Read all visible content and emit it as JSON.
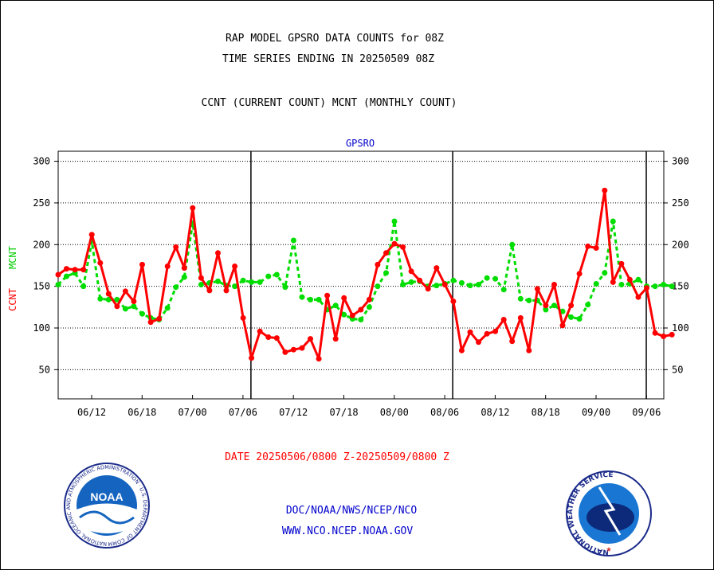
{
  "chart_data": {
    "type": "line",
    "title_lines": [
      "RAP MODEL GPSRO DATA COUNTS for 08Z",
      "TIME SERIES ENDING IN 20250509 08Z"
    ],
    "subtitle": "CCNT (CURRENT COUNT) MCNT (MONTHLY COUNT)",
    "panel_label": "GPSRO",
    "ylabel_ccnt": "CCNT",
    "ylabel_mcnt": "MCNT",
    "xlabel": "DATE 20250506/0800 Z-20250509/0800 Z",
    "ylim": [
      15,
      312
    ],
    "y_ticks": [
      50,
      100,
      150,
      200,
      250,
      300
    ],
    "x_ticks": [
      "06/12",
      "06/18",
      "07/00",
      "07/06",
      "07/12",
      "07/18",
      "08/00",
      "08/06",
      "08/12",
      "08/18",
      "09/00",
      "09/06"
    ],
    "day_boundaries": [
      "07/06",
      "08/06",
      "09/06"
    ],
    "grid": "horizontal-dotted",
    "colors": {
      "ccnt": "#ff0000",
      "mcnt": "#00dd00",
      "axis": "#000000",
      "label": "#0000cc"
    },
    "series": [
      {
        "name": "CCNT",
        "values": [
          164,
          171,
          170,
          170,
          212,
          178,
          141,
          126,
          144,
          132,
          176,
          107,
          111,
          174,
          197,
          172,
          244,
          160,
          145,
          190,
          145,
          174,
          112,
          64,
          96,
          89,
          88,
          71,
          74,
          76,
          87,
          63,
          139,
          87,
          136,
          115,
          122,
          134,
          176,
          190,
          201,
          197,
          168,
          157,
          147,
          172,
          152,
          132,
          73,
          95,
          83,
          93,
          96,
          110,
          84,
          112,
          73,
          147,
          127,
          152,
          103,
          127,
          165,
          198,
          196,
          265,
          155,
          177,
          158,
          137,
          148,
          94,
          90,
          92
        ]
      },
      {
        "name": "MCNT",
        "values": [
          152,
          162,
          166,
          150,
          204,
          135,
          134,
          134,
          123,
          126,
          117,
          112,
          110,
          124,
          149,
          161,
          226,
          152,
          154,
          156,
          151,
          150,
          157,
          155,
          155,
          162,
          164,
          149,
          205,
          137,
          134,
          134,
          122,
          127,
          116,
          111,
          110,
          125,
          150,
          166,
          228,
          152,
          155,
          156,
          150,
          151,
          153,
          157,
          154,
          151,
          152,
          160,
          159,
          146,
          200,
          135,
          133,
          133,
          122,
          127,
          120,
          113,
          111,
          128,
          153,
          166,
          228,
          152,
          153,
          158,
          150,
          150,
          152,
          150
        ]
      }
    ]
  },
  "footer": {
    "agency_line": "DOC/NOAA/NWS/NCEP/NCO",
    "website": "WWW.NCO.NCEP.NOAA.GOV",
    "noaa_logo_text": "NOAA",
    "noaa_ring_text": "NATIONAL OCEANIC AND ATMOSPHERIC ADMINISTRATION · U.S. DEPARTMENT OF COMMERCE",
    "nws_ring_text": "NATIONAL WEATHER SERVICE"
  }
}
